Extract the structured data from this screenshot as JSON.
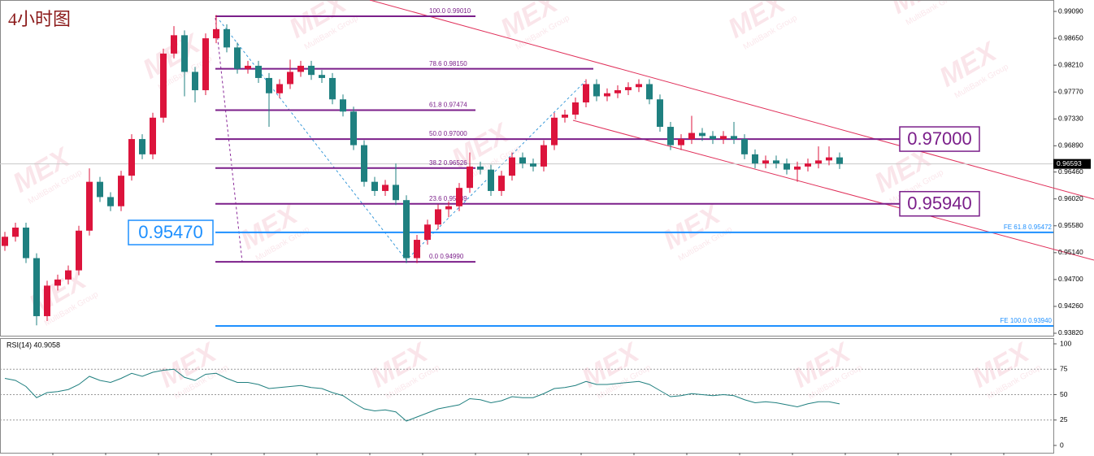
{
  "chart_data": {
    "type": "candlestick",
    "title": "4小时图",
    "up_color": "#dc143c",
    "down_color": "#1f8080",
    "open": [
      0.9525,
      0.954,
      0.9555,
      0.9505,
      0.941,
      0.946,
      0.947,
      0.9485,
      0.955,
      0.963,
      0.9605,
      0.959,
      0.964,
      0.97,
      0.9675,
      0.9735,
      0.984,
      0.987,
      0.981,
      0.978,
      0.9865,
      0.988,
      0.985,
      0.9815,
      0.982,
      0.98,
      0.9775,
      0.979,
      0.981,
      0.982,
      0.9805,
      0.98,
      0.9765,
      0.9745,
      0.969,
      0.963,
      0.9615,
      0.9625,
      0.96,
      0.9505,
      0.9535,
      0.956,
      0.9585,
      0.959,
      0.962,
      0.9655,
      0.965,
      0.9615,
      0.964,
      0.967,
      0.966,
      0.9655,
      0.969,
      0.9735,
      0.974,
      0.976,
      0.979,
      0.977,
      0.9775,
      0.978,
      0.9785,
      0.979,
      0.9765,
      0.972,
      0.969,
      0.97,
      0.971,
      0.9705,
      0.97,
      0.9705,
      0.97,
      0.9675,
      0.966,
      0.9665,
      0.966,
      0.965,
      0.9655,
      0.966,
      0.9665,
      0.967
    ],
    "high": [
      0.9548,
      0.9563,
      0.9563,
      0.9513,
      0.9468,
      0.9478,
      0.9493,
      0.9558,
      0.9652,
      0.9638,
      0.9613,
      0.9648,
      0.9708,
      0.9708,
      0.9743,
      0.9848,
      0.9885,
      0.9878,
      0.9818,
      0.9873,
      0.9903,
      0.9888,
      0.9858,
      0.9828,
      0.9828,
      0.9808,
      0.9798,
      0.983,
      0.9828,
      0.9828,
      0.9813,
      0.9808,
      0.9773,
      0.9753,
      0.9698,
      0.9638,
      0.9633,
      0.966,
      0.9608,
      0.9543,
      0.9568,
      0.9593,
      0.9598,
      0.9628,
      0.9678,
      0.9663,
      0.9658,
      0.9648,
      0.9678,
      0.9678,
      0.9668,
      0.9698,
      0.9743,
      0.9748,
      0.9768,
      0.9798,
      0.9798,
      0.9783,
      0.9788,
      0.9793,
      0.9798,
      0.9798,
      0.9773,
      0.9728,
      0.9708,
      0.9738,
      0.9718,
      0.9713,
      0.9713,
      0.9728,
      0.9708,
      0.9683,
      0.9673,
      0.9673,
      0.9668,
      0.9663,
      0.9668,
      0.9688,
      0.9688,
      0.9678
    ],
    "low": [
      0.9517,
      0.9532,
      0.9497,
      0.9395,
      0.9402,
      0.9452,
      0.9462,
      0.9477,
      0.9542,
      0.9597,
      0.9582,
      0.9582,
      0.9632,
      0.9667,
      0.9667,
      0.9727,
      0.9832,
      0.977,
      0.976,
      0.9772,
      0.9857,
      0.9842,
      0.9807,
      0.9807,
      0.9792,
      0.972,
      0.9767,
      0.9782,
      0.9802,
      0.9797,
      0.9792,
      0.9757,
      0.9737,
      0.9682,
      0.9622,
      0.9607,
      0.9607,
      0.9592,
      0.9497,
      0.9497,
      0.9527,
      0.9552,
      0.9572,
      0.9582,
      0.9612,
      0.9642,
      0.9607,
      0.9607,
      0.9632,
      0.9652,
      0.9647,
      0.9647,
      0.9682,
      0.9727,
      0.9732,
      0.9752,
      0.9762,
      0.9762,
      0.9767,
      0.9772,
      0.9777,
      0.9757,
      0.9712,
      0.9682,
      0.9682,
      0.9692,
      0.9697,
      0.9692,
      0.9692,
      0.9692,
      0.9667,
      0.9652,
      0.9652,
      0.9652,
      0.9642,
      0.963,
      0.9647,
      0.9652,
      0.9657,
      0.9651
    ],
    "close": [
      0.954,
      0.9555,
      0.9505,
      0.941,
      0.946,
      0.947,
      0.9485,
      0.955,
      0.963,
      0.9605,
      0.959,
      0.964,
      0.97,
      0.9675,
      0.9735,
      0.984,
      0.987,
      0.981,
      0.978,
      0.9865,
      0.988,
      0.985,
      0.9815,
      0.982,
      0.98,
      0.9775,
      0.979,
      0.981,
      0.982,
      0.9805,
      0.98,
      0.9765,
      0.9745,
      0.969,
      0.963,
      0.9615,
      0.9625,
      0.96,
      0.9505,
      0.9535,
      0.956,
      0.9585,
      0.959,
      0.962,
      0.9655,
      0.965,
      0.9615,
      0.964,
      0.967,
      0.966,
      0.9655,
      0.969,
      0.9735,
      0.974,
      0.976,
      0.979,
      0.977,
      0.9775,
      0.978,
      0.9785,
      0.979,
      0.9765,
      0.972,
      0.969,
      0.97,
      0.971,
      0.9705,
      0.97,
      0.9705,
      0.97,
      0.9675,
      0.966,
      0.9665,
      0.966,
      0.965,
      0.9655,
      0.966,
      0.9665,
      0.967,
      0.96593
    ],
    "ylim": [
      0.99277,
      0.9378
    ],
    "yticks": [
      {
        "value": 0.9909,
        "label": "0.99090"
      },
      {
        "value": 0.9865,
        "label": "0.98650"
      },
      {
        "value": 0.9821,
        "label": "0.98210"
      },
      {
        "value": 0.9777,
        "label": "0.97770"
      },
      {
        "value": 0.9733,
        "label": "0.97330"
      },
      {
        "value": 0.9689,
        "label": "0.96890"
      },
      {
        "value": 0.9646,
        "label": "0.96460"
      },
      {
        "value": 0.9602,
        "label": "0.96020"
      },
      {
        "value": 0.9558,
        "label": "0.95580"
      },
      {
        "value": 0.9514,
        "label": "0.95140"
      },
      {
        "value": 0.947,
        "label": "0.94700"
      },
      {
        "value": 0.9426,
        "label": "0.94260"
      },
      {
        "value": 0.9382,
        "label": "0.93820"
      }
    ],
    "fib_levels": [
      {
        "value": 0.9901,
        "label": "100.0  0.99010"
      },
      {
        "value": 0.9815,
        "label": "78.6  0.98150"
      },
      {
        "value": 0.97474,
        "label": "61.8  0.97474"
      },
      {
        "value": 0.97,
        "label": "50.0  0.97000"
      },
      {
        "value": 0.96526,
        "label": "38.2  0.96526"
      },
      {
        "value": 0.95939,
        "label": "23.6  0.95939"
      },
      {
        "value": 0.9499,
        "label": "0.0  0.94990"
      }
    ],
    "fe_levels": [
      {
        "value": 0.95472,
        "label": "FE 61.8  0.95472"
      },
      {
        "value": 0.9394,
        "label": "FE 100.0  0.93940"
      }
    ],
    "price_labels": [
      {
        "value": 0.97,
        "label": "0.97000",
        "color": "#7b1f8a"
      },
      {
        "value": 0.9594,
        "label": "0.95940",
        "color": "#7b1f8a"
      },
      {
        "value": 0.9547,
        "label": "0.95470",
        "color": "#1e90ff"
      }
    ],
    "last_price": {
      "value": 0.96593,
      "label": "0.96593"
    },
    "rsi": {
      "label": "RSI(14) 40.9058",
      "color": "#1f7f7f",
      "ylim": [
        -7.2,
        105.6
      ],
      "yticks": [
        100,
        75,
        50,
        25,
        0
      ],
      "values": [
        66,
        64,
        58,
        47,
        52,
        53,
        55,
        60,
        68,
        64,
        62,
        66,
        71,
        68,
        72,
        74,
        75,
        67,
        64,
        70,
        71,
        66,
        62,
        62,
        60,
        56,
        57,
        58,
        59,
        57,
        56,
        52,
        49,
        42,
        36,
        34,
        35,
        33,
        24,
        28,
        32,
        36,
        38,
        40,
        46,
        45,
        42,
        44,
        48,
        47,
        47,
        51,
        56,
        57,
        59,
        63,
        60,
        60,
        61,
        62,
        63,
        60,
        54,
        48,
        49,
        51,
        50,
        49,
        50,
        49,
        45,
        42,
        43,
        42,
        40,
        38,
        41,
        43,
        43,
        40.9058
      ]
    },
    "watermark": {
      "logo": "MEX",
      "text": "MultiBank Group"
    }
  }
}
